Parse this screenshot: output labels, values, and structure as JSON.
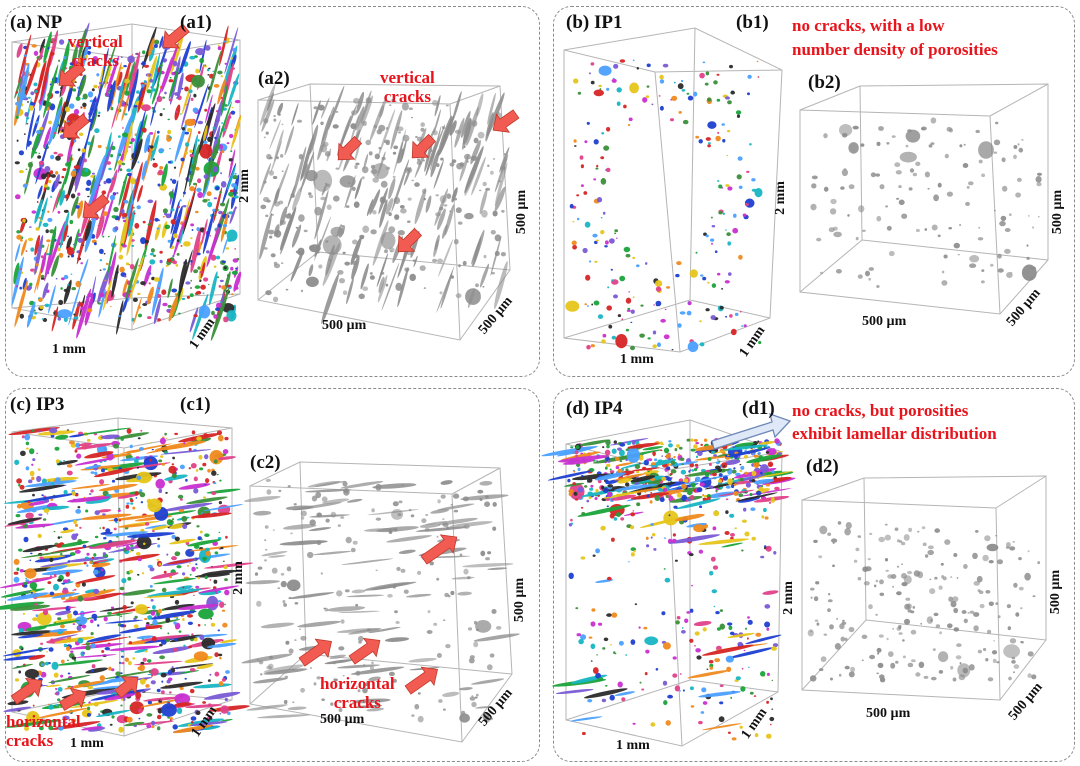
{
  "panels": [
    {
      "id": "a",
      "label": "(a) NP",
      "sub1": {
        "label": "(a1)",
        "height": "2 mm",
        "width": "1 mm",
        "depth": "1 mm",
        "annotation_lines": [
          "vertical",
          "cracks"
        ]
      },
      "sub2": {
        "label": "(a2)",
        "height": "500 µm",
        "width": "500 µm",
        "depth": "500 µm",
        "annotation_lines": [
          "vertical",
          "cracks"
        ]
      }
    },
    {
      "id": "b",
      "label": "(b) IP1",
      "sub1": {
        "label": "(b1)",
        "height": "2 mm",
        "width": "1 mm",
        "depth": "1 mm"
      },
      "sub2": {
        "label": "(b2)",
        "height": "500 µm",
        "width": "500 µm",
        "depth": "500 µm"
      },
      "annotation_lines": [
        "no cracks, with a low",
        "number density of porosities"
      ]
    },
    {
      "id": "c",
      "label": "(c) IP3",
      "sub1": {
        "label": "(c1)",
        "height": "2 mm",
        "width": "1 mm",
        "depth": "1 mm",
        "annotation_lines": [
          "horizontal",
          "cracks"
        ]
      },
      "sub2": {
        "label": "(c2)",
        "height": "500 µm",
        "width": "500 µm",
        "depth": "500 µm",
        "annotation_lines": [
          "horizontal",
          "cracks"
        ]
      }
    },
    {
      "id": "d",
      "label": "(d) IP4",
      "sub1": {
        "label": "(d1)",
        "height": "2 mm",
        "width": "1 mm",
        "depth": "1 mm"
      },
      "sub2": {
        "label": "(d2)",
        "height": "500 µm",
        "width": "500 µm",
        "depth": "500 µm"
      },
      "annotation_lines": [
        "no cracks, but porosities",
        "exhibit lamellar distribution"
      ]
    }
  ],
  "colors": {
    "annotation": "#e8141c",
    "arrow_fill": "#f25b52",
    "arrow_stroke": "#c0392b",
    "pore_gray": "#8c8c8c",
    "box_line": "#b5b5b5",
    "callout_fill": "#dfe8f6",
    "callout_stroke": "#6d87b8"
  }
}
